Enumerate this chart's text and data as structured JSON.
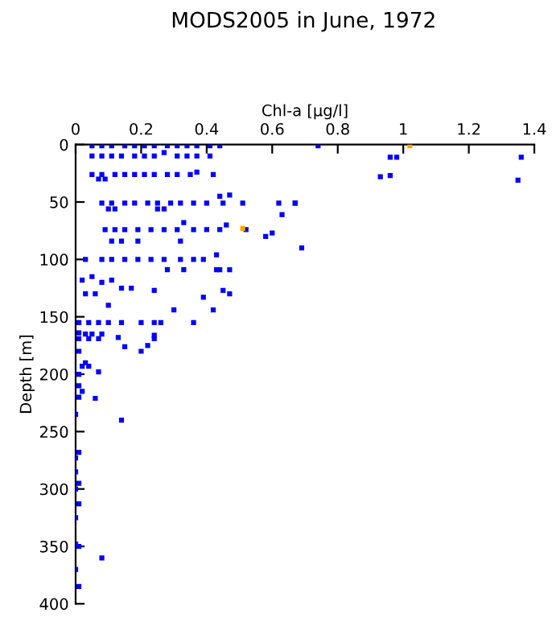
{
  "chart_data": {
    "type": "scatter",
    "title": "MODS2005 in June, 1972",
    "xlabel": "Chl-a [µg/l]",
    "ylabel": "Depth [m]",
    "xlim": [
      0,
      1.4
    ],
    "xticks": [
      0,
      0.2,
      0.4,
      0.6,
      0.8,
      1,
      1.2,
      1.4
    ],
    "ylim": [
      400,
      0
    ],
    "yticks": [
      0,
      50,
      100,
      150,
      200,
      250,
      300,
      350,
      400
    ],
    "grid": false,
    "legend": false,
    "marker": "square",
    "series": [
      {
        "color": "#0000ff",
        "x": [
          0.05,
          0.08,
          0.11,
          0.15,
          0.18,
          0.21,
          0.24,
          0.28,
          0.31,
          0.34,
          0.37,
          0.41,
          0.44,
          0.74,
          0.05,
          0.08,
          0.11,
          0.14,
          0.18,
          0.21,
          0.24,
          0.27,
          0.31,
          0.34,
          0.37,
          0.41,
          0.96,
          0.98,
          1.36,
          0.93,
          0.96,
          1.35,
          0.05,
          0.08,
          0.12,
          0.15,
          0.18,
          0.21,
          0.24,
          0.28,
          0.31,
          0.35,
          0.37,
          0.42,
          0.07,
          0.09,
          0.08,
          0.11,
          0.15,
          0.18,
          0.22,
          0.25,
          0.29,
          0.32,
          0.36,
          0.4,
          0.45,
          0.51,
          0.62,
          0.67,
          0.63,
          0.44,
          0.47,
          0.67,
          0.1,
          0.12,
          0.25,
          0.27,
          0.09,
          0.12,
          0.15,
          0.19,
          0.23,
          0.27,
          0.31,
          0.36,
          0.4,
          0.44,
          0.46,
          0.52,
          0.58,
          0.6,
          0.69,
          0.33,
          0.11,
          0.14,
          0.19,
          0.32,
          0.03,
          0.08,
          0.11,
          0.15,
          0.19,
          0.23,
          0.27,
          0.32,
          0.36,
          0.39,
          0.43,
          0.44,
          0.47,
          0.43,
          0.33,
          0.28,
          0.02,
          0.05,
          0.08,
          0.11,
          0.14,
          0.17,
          0.24,
          0.47,
          0.45,
          0.39,
          0.03,
          0.06,
          0.1,
          0.42,
          0.3,
          0.01,
          0.04,
          0.07,
          0.1,
          0.14,
          0.2,
          0.24,
          0.26,
          0.36,
          0.01,
          0.04,
          0.07,
          0.24,
          0.01,
          0.03,
          0.05,
          0.08,
          0.13,
          0.24,
          0.22,
          0.2,
          0.15,
          0.01,
          0.03,
          0.01,
          0.02,
          0.04,
          0.07,
          0.01,
          0.02,
          0.01,
          0.06,
          0.0,
          0.14,
          0.01,
          0.0,
          0.0,
          0.01,
          0.0,
          0.01,
          0.0,
          0.01,
          0.0,
          0.01,
          0.0,
          0.08
        ],
        "values": [
          1,
          1,
          1,
          1,
          1,
          1,
          1,
          1,
          1,
          1,
          1,
          1,
          1,
          1,
          10,
          10,
          10,
          10,
          10,
          10,
          10,
          7,
          10,
          10,
          10,
          10,
          11,
          11,
          11,
          28,
          27,
          31,
          26,
          26,
          26,
          26,
          26,
          26,
          26,
          26,
          26,
          26,
          24,
          26,
          30,
          30,
          51,
          51,
          51,
          51,
          51,
          51,
          51,
          51,
          51,
          51,
          51,
          51,
          51,
          51,
          61,
          45,
          44,
          51,
          56,
          56,
          56,
          56,
          74,
          74,
          74,
          74,
          74,
          74,
          74,
          74,
          74,
          74,
          70,
          74,
          80,
          77,
          90,
          68,
          84,
          84,
          84,
          84,
          100,
          100,
          100,
          100,
          100,
          100,
          100,
          100,
          100,
          100,
          96,
          109,
          109,
          109,
          109,
          109,
          118,
          115,
          120,
          118,
          125,
          125,
          127,
          130,
          127,
          133,
          130,
          130,
          140,
          144,
          144,
          155,
          155,
          155,
          155,
          155,
          155,
          155,
          155,
          155,
          169,
          169,
          169,
          169,
          164,
          165,
          165,
          165,
          168,
          166,
          175,
          180,
          176,
          180,
          190,
          200,
          193,
          193,
          198,
          210,
          215,
          220,
          221,
          235,
          240,
          268,
          273,
          285,
          295,
          300,
          313,
          325,
          350,
          370,
          385,
          348,
          360
        ]
      },
      {
        "color": "#ffa500",
        "x": [
          1.02,
          0.51
        ],
        "values": [
          1,
          73
        ]
      }
    ]
  }
}
